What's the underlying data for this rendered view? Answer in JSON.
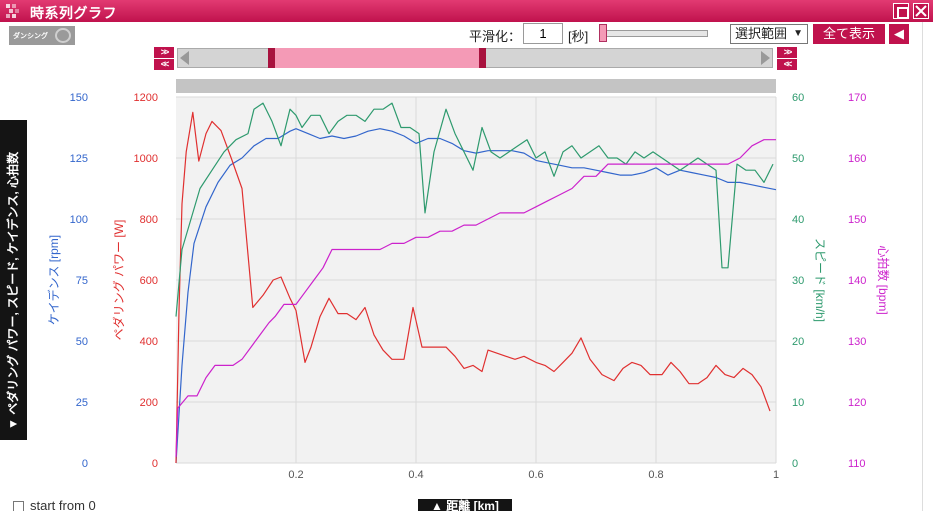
{
  "window": {
    "title": "時系列グラフ"
  },
  "badge": {
    "text": "ダンシング"
  },
  "controls": {
    "smoothing_label": "平滑化：",
    "smoothing_value": "1",
    "seconds_label": "[秒]",
    "select_range": "選択範囲",
    "select_arrow": "▼",
    "show_all": "全て表示",
    "back_icon": "◀",
    "step_forward": ">>",
    "step_back": "<<",
    "range_selection": {
      "start": 0.158,
      "end": 0.513
    }
  },
  "side_tab": {
    "label": "▼ ペダリング パワー, スピード, ケイデンス, 心拍数"
  },
  "bottom": {
    "axis_tab": "▲ 距離 [km]",
    "start_from_label": "start from 0"
  },
  "colors": {
    "accent": "#c0124d",
    "cadence": "#3366cc",
    "power": "#e03030",
    "speed": "#2e9a6e",
    "heart_rate": "#cc22cc",
    "plot_bg": "#f2f2f2",
    "grid": "#dadada"
  },
  "chart_data": {
    "type": "line",
    "x_label": "距離 [km]",
    "x_lim": [
      0,
      1
    ],
    "x_ticks": [
      "0.2",
      "0.4",
      "0.6",
      "0.8",
      "1"
    ],
    "axes": {
      "cadence": {
        "label": "ケイデンス [rpm]",
        "lim": [
          0,
          150
        ],
        "ticks": [
          "0",
          "25",
          "50",
          "75",
          "100",
          "125",
          "150"
        ]
      },
      "power": {
        "label": "ペダリング パワー [W]",
        "lim": [
          0,
          1200
        ],
        "ticks": [
          "0",
          "200",
          "400",
          "600",
          "800",
          "1000",
          "1200"
        ]
      },
      "speed": {
        "label": "スピード [km/h]",
        "lim": [
          0,
          60
        ],
        "ticks": [
          "0",
          "10",
          "20",
          "30",
          "40",
          "50",
          "60"
        ]
      },
      "heart_rate": {
        "label": "心拍数 [bpm]",
        "lim": [
          110,
          170
        ],
        "ticks": [
          "110",
          "120",
          "130",
          "140",
          "150",
          "160",
          "170"
        ]
      }
    },
    "series": [
      {
        "key": "cadence",
        "name": "ケイデンス",
        "points": [
          [
            0,
            0
          ],
          [
            0.01,
            40
          ],
          [
            0.02,
            70
          ],
          [
            0.03,
            90
          ],
          [
            0.05,
            105
          ],
          [
            0.07,
            115
          ],
          [
            0.09,
            122
          ],
          [
            0.11,
            125
          ],
          [
            0.13,
            130
          ],
          [
            0.15,
            133
          ],
          [
            0.17,
            133
          ],
          [
            0.19,
            136
          ],
          [
            0.2,
            137
          ],
          [
            0.22,
            135
          ],
          [
            0.24,
            133
          ],
          [
            0.26,
            134
          ],
          [
            0.28,
            133
          ],
          [
            0.3,
            134
          ],
          [
            0.32,
            136
          ],
          [
            0.34,
            137
          ],
          [
            0.36,
            136
          ],
          [
            0.38,
            134
          ],
          [
            0.4,
            131
          ],
          [
            0.42,
            133
          ],
          [
            0.44,
            133
          ],
          [
            0.46,
            131
          ],
          [
            0.48,
            128
          ],
          [
            0.5,
            127
          ],
          [
            0.52,
            128
          ],
          [
            0.54,
            128
          ],
          [
            0.56,
            128
          ],
          [
            0.58,
            127
          ],
          [
            0.6,
            124
          ],
          [
            0.62,
            123
          ],
          [
            0.64,
            122
          ],
          [
            0.66,
            121
          ],
          [
            0.68,
            121
          ],
          [
            0.7,
            120
          ],
          [
            0.72,
            119
          ],
          [
            0.74,
            118
          ],
          [
            0.76,
            118
          ],
          [
            0.78,
            119
          ],
          [
            0.8,
            121
          ],
          [
            0.82,
            118
          ],
          [
            0.84,
            120
          ],
          [
            0.86,
            119
          ],
          [
            0.88,
            118
          ],
          [
            0.9,
            117
          ],
          [
            0.92,
            115
          ],
          [
            0.94,
            115
          ],
          [
            0.96,
            114
          ],
          [
            0.98,
            113
          ],
          [
            1.0,
            112
          ]
        ]
      },
      {
        "key": "power",
        "name": "ペダリング パワー",
        "points": [
          [
            0,
            0
          ],
          [
            0.005,
            500
          ],
          [
            0.01,
            850
          ],
          [
            0.017,
            1020
          ],
          [
            0.028,
            1150
          ],
          [
            0.038,
            990
          ],
          [
            0.05,
            1080
          ],
          [
            0.06,
            1120
          ],
          [
            0.075,
            1090
          ],
          [
            0.092,
            1000
          ],
          [
            0.11,
            900
          ],
          [
            0.128,
            510
          ],
          [
            0.145,
            550
          ],
          [
            0.162,
            600
          ],
          [
            0.175,
            610
          ],
          [
            0.19,
            540
          ],
          [
            0.2,
            500
          ],
          [
            0.215,
            330
          ],
          [
            0.225,
            380
          ],
          [
            0.24,
            480
          ],
          [
            0.255,
            540
          ],
          [
            0.27,
            490
          ],
          [
            0.285,
            490
          ],
          [
            0.3,
            470
          ],
          [
            0.315,
            510
          ],
          [
            0.33,
            420
          ],
          [
            0.345,
            370
          ],
          [
            0.36,
            340
          ],
          [
            0.38,
            340
          ],
          [
            0.395,
            510
          ],
          [
            0.41,
            380
          ],
          [
            0.43,
            380
          ],
          [
            0.45,
            380
          ],
          [
            0.465,
            350
          ],
          [
            0.48,
            310
          ],
          [
            0.495,
            320
          ],
          [
            0.51,
            300
          ],
          [
            0.52,
            370
          ],
          [
            0.535,
            360
          ],
          [
            0.55,
            350
          ],
          [
            0.565,
            340
          ],
          [
            0.58,
            350
          ],
          [
            0.6,
            330
          ],
          [
            0.615,
            320
          ],
          [
            0.63,
            300
          ],
          [
            0.645,
            330
          ],
          [
            0.66,
            360
          ],
          [
            0.675,
            410
          ],
          [
            0.69,
            340
          ],
          [
            0.71,
            290
          ],
          [
            0.73,
            270
          ],
          [
            0.745,
            310
          ],
          [
            0.76,
            330
          ],
          [
            0.775,
            320
          ],
          [
            0.79,
            290
          ],
          [
            0.81,
            290
          ],
          [
            0.825,
            330
          ],
          [
            0.84,
            300
          ],
          [
            0.855,
            260
          ],
          [
            0.87,
            260
          ],
          [
            0.885,
            280
          ],
          [
            0.9,
            320
          ],
          [
            0.915,
            290
          ],
          [
            0.93,
            280
          ],
          [
            0.945,
            310
          ],
          [
            0.96,
            290
          ],
          [
            0.975,
            250
          ],
          [
            0.99,
            170
          ]
        ]
      },
      {
        "key": "speed",
        "name": "スピード",
        "points": [
          [
            0,
            24
          ],
          [
            0.01,
            35
          ],
          [
            0.025,
            40
          ],
          [
            0.04,
            45
          ],
          [
            0.06,
            48
          ],
          [
            0.08,
            51
          ],
          [
            0.1,
            53
          ],
          [
            0.12,
            54
          ],
          [
            0.13,
            58
          ],
          [
            0.145,
            59
          ],
          [
            0.16,
            56
          ],
          [
            0.175,
            52
          ],
          [
            0.19,
            58
          ],
          [
            0.2,
            57
          ],
          [
            0.21,
            55
          ],
          [
            0.225,
            57
          ],
          [
            0.24,
            57
          ],
          [
            0.255,
            54
          ],
          [
            0.27,
            56
          ],
          [
            0.285,
            57
          ],
          [
            0.3,
            57
          ],
          [
            0.315,
            56
          ],
          [
            0.33,
            58
          ],
          [
            0.345,
            58
          ],
          [
            0.36,
            59
          ],
          [
            0.375,
            55
          ],
          [
            0.39,
            55
          ],
          [
            0.405,
            54
          ],
          [
            0.415,
            41
          ],
          [
            0.43,
            51
          ],
          [
            0.45,
            58
          ],
          [
            0.465,
            54
          ],
          [
            0.48,
            51
          ],
          [
            0.495,
            48
          ],
          [
            0.51,
            55
          ],
          [
            0.525,
            51
          ],
          [
            0.54,
            50
          ],
          [
            0.555,
            51
          ],
          [
            0.57,
            52
          ],
          [
            0.585,
            53
          ],
          [
            0.6,
            50
          ],
          [
            0.615,
            51
          ],
          [
            0.63,
            47
          ],
          [
            0.645,
            51
          ],
          [
            0.66,
            52
          ],
          [
            0.675,
            50
          ],
          [
            0.69,
            51
          ],
          [
            0.705,
            52
          ],
          [
            0.72,
            50
          ],
          [
            0.735,
            50
          ],
          [
            0.75,
            49
          ],
          [
            0.765,
            51
          ],
          [
            0.78,
            50
          ],
          [
            0.795,
            51
          ],
          [
            0.81,
            50
          ],
          [
            0.825,
            49
          ],
          [
            0.84,
            48
          ],
          [
            0.855,
            49
          ],
          [
            0.87,
            50
          ],
          [
            0.885,
            49
          ],
          [
            0.9,
            48
          ],
          [
            0.91,
            32
          ],
          [
            0.92,
            32
          ],
          [
            0.935,
            49
          ],
          [
            0.95,
            48
          ],
          [
            0.965,
            48
          ],
          [
            0.98,
            46
          ],
          [
            0.995,
            49
          ]
        ]
      },
      {
        "key": "heart_rate",
        "name": "心拍数",
        "points": [
          [
            0,
            111
          ],
          [
            0.003,
            119
          ],
          [
            0.02,
            121
          ],
          [
            0.035,
            121
          ],
          [
            0.05,
            124
          ],
          [
            0.065,
            126
          ],
          [
            0.08,
            126
          ],
          [
            0.095,
            126
          ],
          [
            0.11,
            127
          ],
          [
            0.125,
            129
          ],
          [
            0.14,
            131
          ],
          [
            0.155,
            133
          ],
          [
            0.165,
            134
          ],
          [
            0.18,
            136
          ],
          [
            0.2,
            136
          ],
          [
            0.215,
            138
          ],
          [
            0.23,
            140
          ],
          [
            0.245,
            142
          ],
          [
            0.26,
            145
          ],
          [
            0.275,
            145
          ],
          [
            0.3,
            145
          ],
          [
            0.32,
            145
          ],
          [
            0.34,
            145
          ],
          [
            0.36,
            146
          ],
          [
            0.38,
            146
          ],
          [
            0.4,
            147
          ],
          [
            0.42,
            147
          ],
          [
            0.44,
            148
          ],
          [
            0.46,
            148
          ],
          [
            0.48,
            149
          ],
          [
            0.5,
            149
          ],
          [
            0.52,
            150
          ],
          [
            0.54,
            151
          ],
          [
            0.56,
            151
          ],
          [
            0.58,
            151
          ],
          [
            0.6,
            152
          ],
          [
            0.62,
            153
          ],
          [
            0.64,
            154
          ],
          [
            0.66,
            155
          ],
          [
            0.68,
            157
          ],
          [
            0.7,
            157
          ],
          [
            0.72,
            159
          ],
          [
            0.74,
            159
          ],
          [
            0.76,
            159
          ],
          [
            0.78,
            159
          ],
          [
            0.8,
            159
          ],
          [
            0.82,
            159
          ],
          [
            0.84,
            159
          ],
          [
            0.86,
            159
          ],
          [
            0.88,
            159
          ],
          [
            0.9,
            159
          ],
          [
            0.92,
            159
          ],
          [
            0.94,
            160
          ],
          [
            0.96,
            162
          ],
          [
            0.98,
            163
          ],
          [
            1.0,
            163
          ]
        ]
      }
    ]
  }
}
